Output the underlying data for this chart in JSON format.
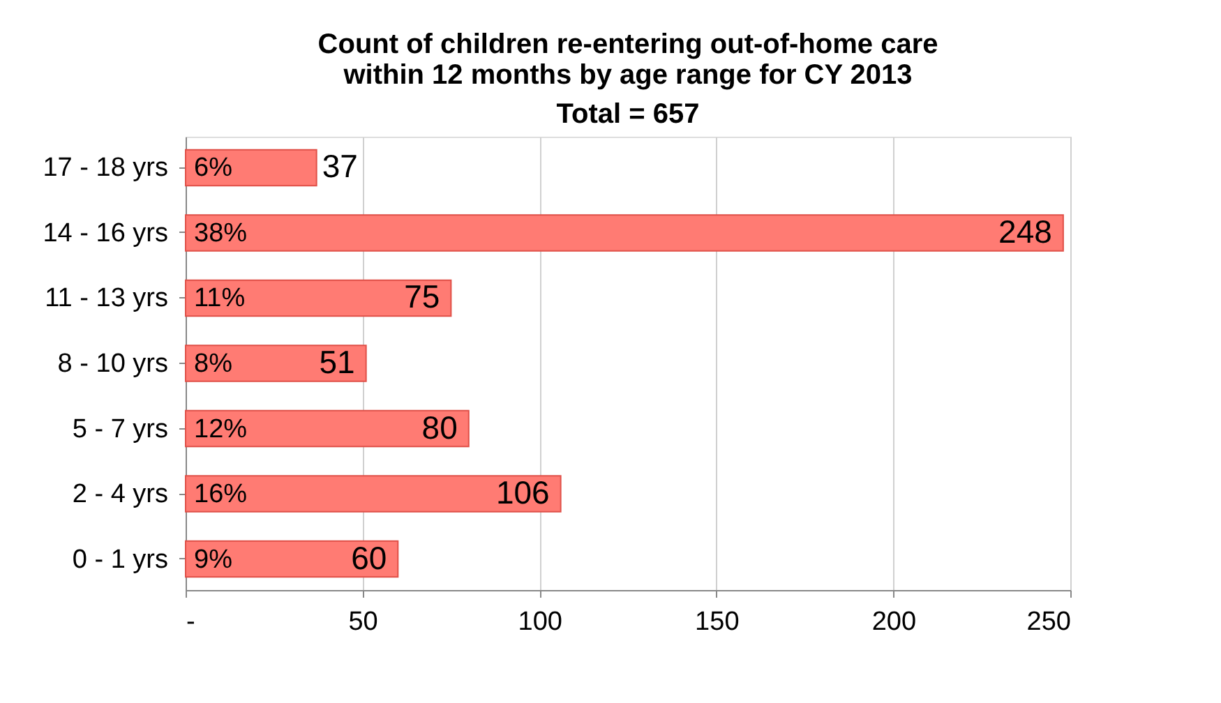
{
  "chart_data": {
    "type": "bar",
    "orientation": "horizontal",
    "title": [
      "Count of children re-entering out-of-home  care",
      "within 12 months by age range for CY 2013"
    ],
    "subtitle": "Total = 657",
    "categories": [
      "17 - 18 yrs",
      "14 - 16 yrs",
      "11 - 13 yrs",
      "8 - 10 yrs",
      "5 - 7 yrs",
      "2 - 4 yrs",
      "0 - 1 yrs"
    ],
    "values": [
      37,
      248,
      75,
      51,
      80,
      106,
      60
    ],
    "color": "#ff7b73",
    "data_labels": true,
    "annotations": [
      "6%",
      "38%",
      "11%",
      "8%",
      "12%",
      "16%",
      "9%"
    ],
    "xlim": [
      0,
      250
    ],
    "xticks": [
      {
        "value": 0,
        "label": "-"
      },
      50,
      100,
      150,
      200,
      250
    ],
    "grid": "x",
    "legend": false
  }
}
